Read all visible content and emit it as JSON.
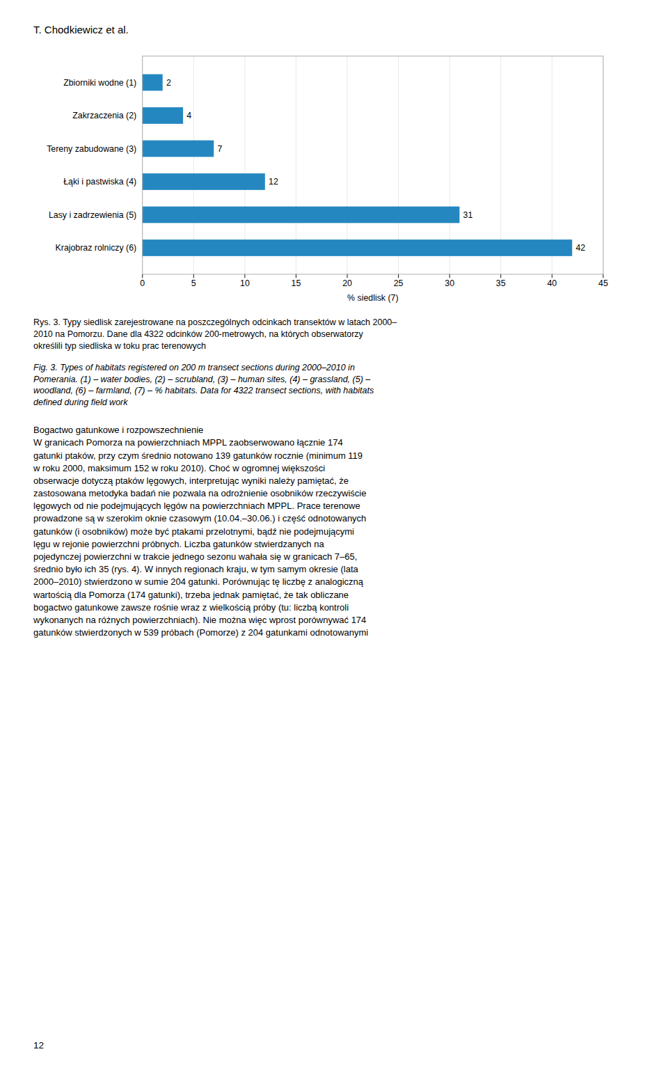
{
  "chart_data": {
    "type": "bar",
    "orientation": "horizontal",
    "categories": [
      "Krajobraz rolniczy (6)",
      "Lasy i zadrzewienia (5)",
      "Łąki i pastwiska (4)",
      "Tereny zabudowane (3)",
      "Zakrzaczenia (2)",
      "Zbiorniki wodne (1)"
    ],
    "values": [
      42,
      31,
      12,
      7,
      4,
      2
    ],
    "color": "#2487c0",
    "xlabel": "% siedlisk (7)",
    "xlim": [
      0,
      45
    ],
    "xticks": [
      0,
      5,
      10,
      15,
      20,
      25,
      30,
      35,
      40,
      45
    ],
    "grid": true,
    "data_labels": true,
    "annotations": [
      "T. Chodkiewicz et al.",
      "Rys. 3. Typy siedlisk zarejestrowane na poszczególnych odcinkach transektów w latach 2000–\n2010 na Pomorzu. Dane dla 4322 odcinków 200-metrowych, na których obserwatorzy\nokreślili typ siedliska w toku prac terenowych",
      "Fig. 3.  Types of habitats registered on 200 m transect sections during 2000–2010 in\nPomerania. (1) – water bodies, (2) – scrubland, (3) – human sites, (4) – grassland, (5) –\nwoodland, (6) – farmland, (7) – % habitats. Data for 4322 transect sections, with habitats\ndefined during field work",
      "Bogactwo gatunkowe i rozpowszechnienie\nW granicach Pomorza na powierzchniach MPPL zaobserwowano łącznie 174\ngatunki ptaków, przy czym średnio notowano 139 gatunków rocznie (minimum 119\nw roku 2000, maksimum 152 w roku 2010). Choć w ogromnej większości\nobserwacje dotyczą ptaków lęgowych, interpretując wyniki należy pamiętać, że\nzastosowana metodyka badań nie pozwala na odrożnienie osobników rzeczywiście\nlęgowych od nie podejmujących lęgów na powierzchniach MPPL. Prace terenowe\nprowadzone są w szerokim oknie czasowym (10.04.–30.06.) i część odnotowanych\ngatunków (i osobników) może być ptakami przelotnymi, bądź nie podejmującymi\nlęgu w rejonie powierzchni próbnych. Liczba gatunków stwierdzanych na\npojedynczej powierzchni w trakcie jednego sezonu wahała się w granicach 7–65,\nśrednio było ich 35 (rys. 4). W innych regionach kraju, w tym samym okresie (lata\n2000–2010) stwierdzono w sumie 204 gatunki. Porównując tę liczbę z analogiczną\nwartością dla Pomorza (174 gatunki), trzeba jednak pamiętać, że tak obliczane\nbogactwo gatunkowe zawsze rośnie wraz z wielkością próby (tu: liczbą kontroli\nwykonanych na różnych powierzchniach). Nie można więc wprost porównywać 174\ngatunków stwierdzonych w 539 próbach (Pomorze) z 204 gatunkami odnotowanymi",
      "12"
    ]
  }
}
